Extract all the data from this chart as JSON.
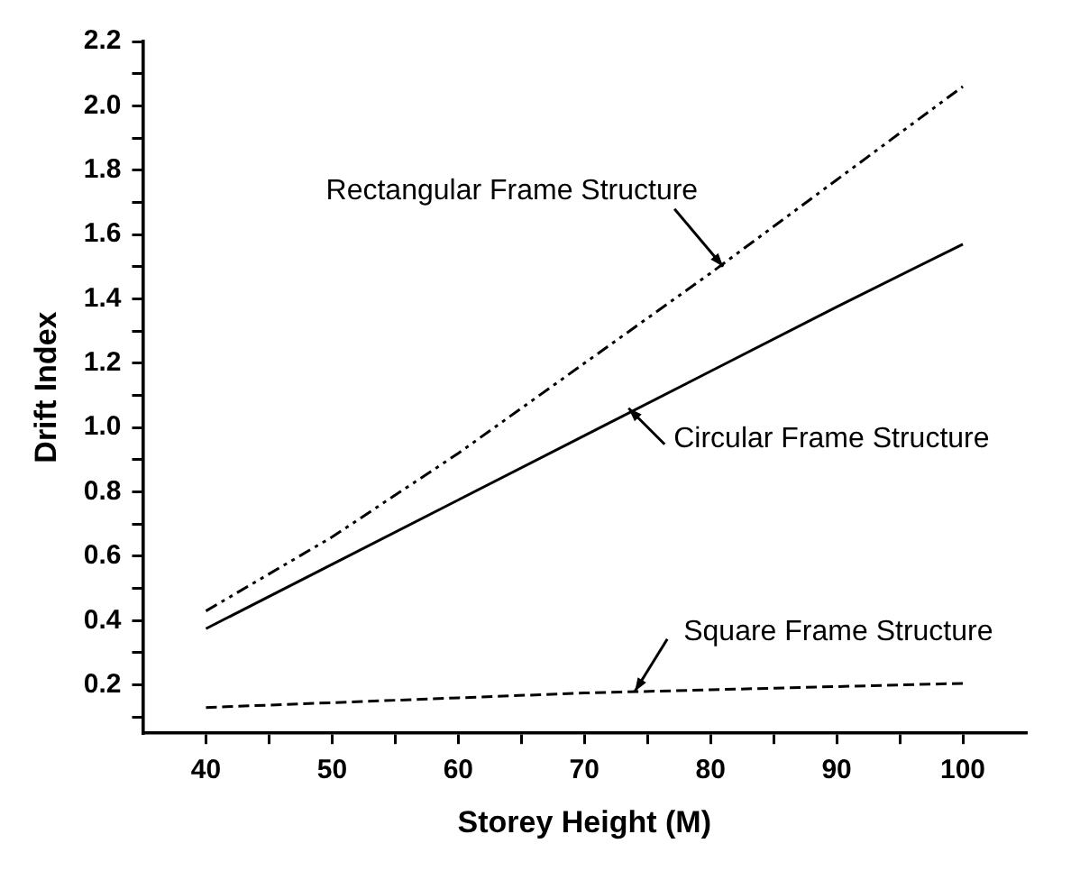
{
  "chart_data": {
    "type": "line",
    "xlabel": "Storey Height (M)",
    "ylabel": "Drift Index",
    "x": [
      40,
      50,
      60,
      70,
      80,
      90,
      100
    ],
    "series": [
      {
        "color": "#000000",
        "line_style": "dotted",
        "values": [
          0.43,
          0.66,
          0.92,
          1.2,
          1.48,
          1.77,
          2.06
        ]
      },
      {
        "color": "#000000",
        "line_style": "solid",
        "values": [
          0.375,
          0.575,
          0.775,
          0.975,
          1.175,
          1.375,
          1.57
        ]
      },
      {
        "color": "#000000",
        "line_style": "dashed",
        "values": [
          0.13,
          0.145,
          0.16,
          0.175,
          0.185,
          0.195,
          0.205
        ]
      }
    ],
    "annotations": [
      {
        "text": "Rectangular Frame Structure",
        "x": 81,
        "y": 1.5
      },
      {
        "text": "Circular Frame Structure",
        "x": 73.5,
        "y": 1.06
      },
      {
        "text": "Square Frame Structure",
        "x": 74,
        "y": 0.18
      }
    ],
    "xlim": [
      35,
      105
    ],
    "ylim": [
      0.05,
      2.2
    ],
    "xticks": [
      40,
      {
        "value": 45,
        "label": null
      },
      50,
      {
        "value": 55,
        "label": null
      },
      60,
      {
        "value": 65,
        "label": null
      },
      70,
      {
        "value": 75,
        "label": null
      },
      80,
      {
        "value": 85,
        "label": null
      },
      90,
      {
        "value": 95,
        "label": null
      },
      100
    ],
    "yticks": [
      {
        "value": 0.1,
        "label": null
      },
      {
        "value": 0.2,
        "label": "0.2"
      },
      {
        "value": 0.3,
        "label": null
      },
      {
        "value": 0.4,
        "label": "0.4"
      },
      {
        "value": 0.5,
        "label": null
      },
      {
        "value": 0.6,
        "label": "0.6"
      },
      {
        "value": 0.7,
        "label": null
      },
      {
        "value": 0.8,
        "label": "0.8"
      },
      {
        "value": 0.9,
        "label": null
      },
      {
        "value": 1.0,
        "label": "1.0"
      },
      {
        "value": 1.1,
        "label": null
      },
      {
        "value": 1.2,
        "label": "1.2"
      },
      {
        "value": 1.3,
        "label": null
      },
      {
        "value": 1.4,
        "label": "1.4"
      },
      {
        "value": 1.5,
        "label": null
      },
      {
        "value": 1.6,
        "label": "1.6"
      },
      {
        "value": 1.7,
        "label": null
      },
      {
        "value": 1.8,
        "label": "1.8"
      },
      {
        "value": 1.9,
        "label": null
      },
      {
        "value": 2.0,
        "label": "2.0"
      },
      {
        "value": 2.1,
        "label": null
      },
      {
        "value": 2.2,
        "label": "2.2"
      }
    ],
    "grid": false,
    "legend": false,
    "marker": "none"
  }
}
